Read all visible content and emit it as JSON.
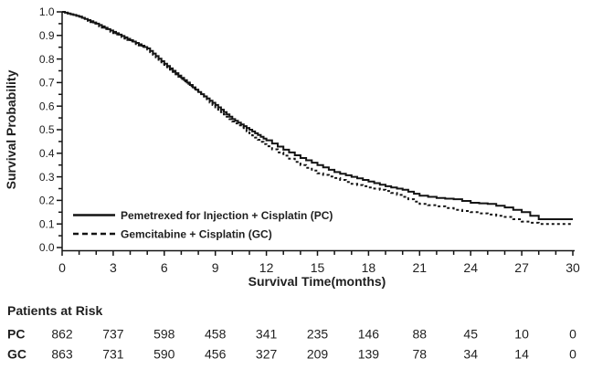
{
  "chart_data": {
    "type": "line",
    "subtype": "kaplan-meier-step",
    "title": "",
    "xlabel": "Survival Time(months)",
    "ylabel": "Survival Probability",
    "xlim": [
      0,
      30
    ],
    "ylim": [
      0.0,
      1.0
    ],
    "x_major_ticks": [
      0,
      3,
      6,
      9,
      12,
      15,
      18,
      21,
      24,
      27,
      30
    ],
    "x_minor_step": 1,
    "y_major_ticks": [
      0.0,
      0.1,
      0.2,
      0.3,
      0.4,
      0.5,
      0.6,
      0.7,
      0.8,
      0.9,
      1.0
    ],
    "y_minor_step": 0.05,
    "grid": "off",
    "legend_position": "inside-lower-left",
    "line_color": "#141414",
    "x": [
      0,
      1,
      2,
      3,
      4,
      5,
      6,
      7,
      8,
      9,
      10,
      11,
      12,
      13,
      14,
      15,
      16,
      17,
      18,
      19,
      20,
      21,
      22,
      23,
      24,
      25,
      26,
      27,
      28,
      29,
      30
    ],
    "series": [
      {
        "name": "PC",
        "label": "Pemetrexed for Injection + Cisplatin (PC)",
        "style": "solid",
        "values": [
          1.0,
          0.98,
          0.95,
          0.915,
          0.88,
          0.845,
          0.78,
          0.72,
          0.66,
          0.605,
          0.545,
          0.5,
          0.455,
          0.415,
          0.38,
          0.35,
          0.32,
          0.3,
          0.28,
          0.26,
          0.245,
          0.22,
          0.21,
          0.205,
          0.19,
          0.185,
          0.17,
          0.15,
          0.12,
          0.12,
          0.12
        ]
      },
      {
        "name": "GC",
        "label": "Gemcitabine + Cisplatin (GC)",
        "style": "dashed",
        "values": [
          1.0,
          0.98,
          0.945,
          0.91,
          0.875,
          0.84,
          0.775,
          0.715,
          0.655,
          0.595,
          0.535,
          0.485,
          0.43,
          0.39,
          0.35,
          0.315,
          0.295,
          0.27,
          0.255,
          0.24,
          0.215,
          0.185,
          0.175,
          0.16,
          0.15,
          0.14,
          0.13,
          0.11,
          0.1,
          0.1,
          0.1
        ]
      }
    ]
  },
  "at_risk": {
    "title": "Patients at Risk",
    "months": [
      0,
      3,
      6,
      9,
      12,
      15,
      18,
      21,
      24,
      27,
      30
    ],
    "rows": [
      {
        "label": "PC",
        "counts": [
          "862",
          "737",
          "598",
          "458",
          "341",
          "235",
          "146",
          "88",
          "45",
          "10",
          "0"
        ]
      },
      {
        "label": "GC",
        "counts": [
          "863",
          "731",
          "590",
          "456",
          "327",
          "209",
          "139",
          "78",
          "34",
          "14",
          "0"
        ]
      }
    ]
  }
}
